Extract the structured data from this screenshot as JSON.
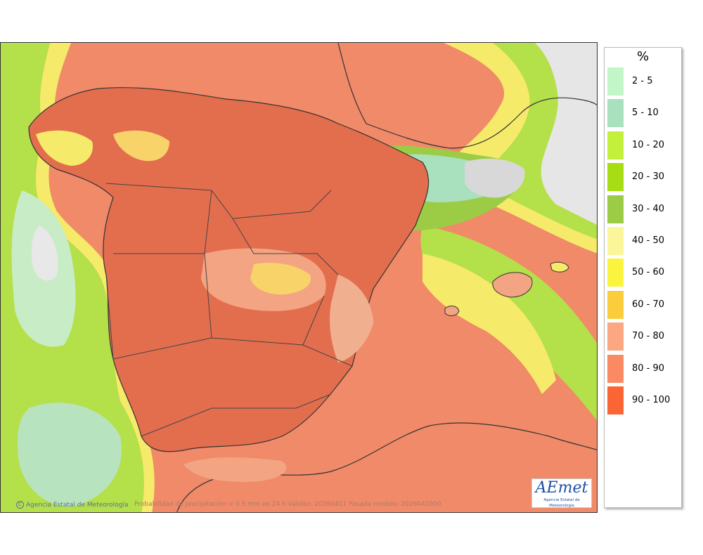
{
  "map": {
    "credit": "Agencia Estatal de Meteorología",
    "caption": "Probabilidad de precipitación > 0.5 mm en 24 h Validez: 20260411 Pasada modelo: 2026041000",
    "logo_text": "AEmet",
    "logo_subtitle": "Agencia Estatal de Meteorología"
  },
  "legend": {
    "unit": "%",
    "bins": [
      {
        "label": "2 - 5",
        "color": "#c2f5c8"
      },
      {
        "label": "5 - 10",
        "color": "#a9e0be"
      },
      {
        "label": "10 - 20",
        "color": "#c3f03a"
      },
      {
        "label": "20 - 30",
        "color": "#a6dd14"
      },
      {
        "label": "30 - 40",
        "color": "#9ccc45"
      },
      {
        "label": "40 - 50",
        "color": "#fbf69a"
      },
      {
        "label": "50 - 60",
        "color": "#fbf43e"
      },
      {
        "label": "60 - 70",
        "color": "#fbcd3c"
      },
      {
        "label": "70 - 80",
        "color": "#fba882"
      },
      {
        "label": "80 - 90",
        "color": "#f98a63"
      },
      {
        "label": "90 - 100",
        "color": "#fb6535"
      }
    ]
  }
}
